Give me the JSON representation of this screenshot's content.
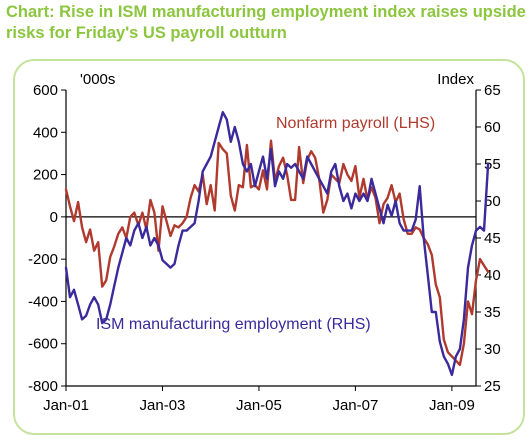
{
  "title": "Chart: Rise in ISM manufacturing employment index raises upside risks for Friday's US payroll outturn",
  "colors": {
    "title": "#8cc63f",
    "panel_border": "#c6e29f",
    "nonfarm": "#b03a2e",
    "ism": "#3a2a9c"
  },
  "chart_data": {
    "type": "line",
    "title": "Rise in ISM manufacturing employment index raises upside risks for Friday's US payroll outturn",
    "left_axis": {
      "unit_label": "'000s",
      "range": [
        -800,
        600
      ],
      "ticks": [
        "600",
        "400",
        "200",
        "0",
        "-200",
        "-400",
        "-600",
        "-800"
      ]
    },
    "right_axis": {
      "unit_label": "Index",
      "range": [
        25,
        65
      ],
      "ticks": [
        "65",
        "60",
        "55",
        "50",
        "45",
        "40",
        "35",
        "30",
        "25"
      ]
    },
    "x_axis": {
      "range": [
        "2001-01",
        "2009-07"
      ],
      "tick_labels": [
        {
          "label": "Jan-01",
          "date": "2001-01"
        },
        {
          "label": "Jan-03",
          "date": "2003-01"
        },
        {
          "label": "Jan-05",
          "date": "2005-01"
        },
        {
          "label": "Jan-07",
          "date": "2007-01"
        },
        {
          "label": "Jan-09",
          "date": "2009-01"
        }
      ]
    },
    "grid": false,
    "series": [
      {
        "name": "Nonfarm payroll (LHS)",
        "axis": "left",
        "color": "#b03a2e",
        "points": [
          [
            "2001-01",
            130
          ],
          [
            "2001-02",
            50
          ],
          [
            "2001-03",
            -20
          ],
          [
            "2001-04",
            70
          ],
          [
            "2001-05",
            -50
          ],
          [
            "2001-06",
            -120
          ],
          [
            "2001-07",
            -60
          ],
          [
            "2001-08",
            -160
          ],
          [
            "2001-09",
            -120
          ],
          [
            "2001-10",
            -330
          ],
          [
            "2001-11",
            -300
          ],
          [
            "2001-12",
            -190
          ],
          [
            "2002-01",
            -140
          ],
          [
            "2002-02",
            -80
          ],
          [
            "2002-03",
            -50
          ],
          [
            "2002-04",
            -100
          ],
          [
            "2002-05",
            0
          ],
          [
            "2002-06",
            20
          ],
          [
            "2002-07",
            -40
          ],
          [
            "2002-08",
            20
          ],
          [
            "2002-09",
            -60
          ],
          [
            "2002-10",
            80
          ],
          [
            "2002-11",
            20
          ],
          [
            "2002-12",
            -160
          ],
          [
            "2003-01",
            50
          ],
          [
            "2003-02",
            -20
          ],
          [
            "2003-03",
            -90
          ],
          [
            "2003-04",
            -40
          ],
          [
            "2003-05",
            -50
          ],
          [
            "2003-06",
            -30
          ],
          [
            "2003-07",
            0
          ],
          [
            "2003-08",
            90
          ],
          [
            "2003-09",
            150
          ],
          [
            "2003-10",
            120
          ],
          [
            "2003-11",
            200
          ],
          [
            "2003-12",
            60
          ],
          [
            "2004-01",
            150
          ],
          [
            "2004-02",
            30
          ],
          [
            "2004-03",
            350
          ],
          [
            "2004-04",
            320
          ],
          [
            "2004-05",
            300
          ],
          [
            "2004-06",
            100
          ],
          [
            "2004-07",
            30
          ],
          [
            "2004-08",
            150
          ],
          [
            "2004-09",
            140
          ],
          [
            "2004-10",
            340
          ],
          [
            "2004-11",
            140
          ],
          [
            "2004-12",
            150
          ],
          [
            "2005-01",
            130
          ],
          [
            "2005-02",
            220
          ],
          [
            "2005-03",
            130
          ],
          [
            "2005-04",
            360
          ],
          [
            "2005-05",
            170
          ],
          [
            "2005-06",
            240
          ],
          [
            "2005-07",
            280
          ],
          [
            "2005-08",
            200
          ],
          [
            "2005-09",
            80
          ],
          [
            "2005-10",
            80
          ],
          [
            "2005-11",
            330
          ],
          [
            "2005-12",
            160
          ],
          [
            "2006-01",
            270
          ],
          [
            "2006-02",
            310
          ],
          [
            "2006-03",
            280
          ],
          [
            "2006-04",
            180
          ],
          [
            "2006-05",
            20
          ],
          [
            "2006-06",
            80
          ],
          [
            "2006-07",
            200
          ],
          [
            "2006-08",
            180
          ],
          [
            "2006-09",
            160
          ],
          [
            "2006-10",
            250
          ],
          [
            "2006-11",
            200
          ],
          [
            "2006-12",
            170
          ],
          [
            "2007-01",
            240
          ],
          [
            "2007-02",
            90
          ],
          [
            "2007-03",
            180
          ],
          [
            "2007-04",
            80
          ],
          [
            "2007-05",
            140
          ],
          [
            "2007-06",
            90
          ],
          [
            "2007-07",
            -30
          ],
          [
            "2007-08",
            60
          ],
          [
            "2007-09",
            90
          ],
          [
            "2007-10",
            150
          ],
          [
            "2007-11",
            70
          ],
          [
            "2007-12",
            110
          ],
          [
            "2008-01",
            -10
          ],
          [
            "2008-02",
            -80
          ],
          [
            "2008-03",
            -80
          ],
          [
            "2008-04",
            -50
          ],
          [
            "2008-05",
            -60
          ],
          [
            "2008-06",
            -100
          ],
          [
            "2008-07",
            -130
          ],
          [
            "2008-08",
            -180
          ],
          [
            "2008-09",
            -320
          ],
          [
            "2008-10",
            -380
          ],
          [
            "2008-11",
            -580
          ],
          [
            "2008-12",
            -640
          ],
          [
            "2009-01",
            -660
          ],
          [
            "2009-02",
            -680
          ],
          [
            "2009-03",
            -700
          ],
          [
            "2009-04",
            -600
          ],
          [
            "2009-05",
            -400
          ],
          [
            "2009-06",
            -460
          ],
          [
            "2009-07",
            -300
          ],
          [
            "2009-08",
            -200
          ],
          [
            "2009-09",
            -230
          ],
          [
            "2009-10",
            -260
          ]
        ]
      },
      {
        "name": "ISM manufacturing employment (RHS)",
        "axis": "right",
        "color": "#3a2a9c",
        "points": [
          [
            "2001-01",
            41
          ],
          [
            "2001-02",
            37
          ],
          [
            "2001-03",
            38
          ],
          [
            "2001-04",
            36
          ],
          [
            "2001-05",
            34
          ],
          [
            "2001-06",
            34.5
          ],
          [
            "2001-07",
            36
          ],
          [
            "2001-08",
            37
          ],
          [
            "2001-09",
            36
          ],
          [
            "2001-10",
            33.5
          ],
          [
            "2001-11",
            34
          ],
          [
            "2001-12",
            36
          ],
          [
            "2002-01",
            38.5
          ],
          [
            "2002-02",
            41
          ],
          [
            "2002-03",
            43
          ],
          [
            "2002-04",
            45
          ],
          [
            "2002-05",
            44
          ],
          [
            "2002-06",
            46
          ],
          [
            "2002-07",
            47
          ],
          [
            "2002-08",
            45
          ],
          [
            "2002-09",
            46.5
          ],
          [
            "2002-10",
            44
          ],
          [
            "2002-11",
            45
          ],
          [
            "2002-12",
            44
          ],
          [
            "2003-01",
            42
          ],
          [
            "2003-02",
            41.5
          ],
          [
            "2003-03",
            41
          ],
          [
            "2003-04",
            41.5
          ],
          [
            "2003-05",
            44
          ],
          [
            "2003-06",
            46
          ],
          [
            "2003-07",
            46
          ],
          [
            "2003-08",
            46.5
          ],
          [
            "2003-09",
            47
          ],
          [
            "2003-10",
            50
          ],
          [
            "2003-11",
            54
          ],
          [
            "2003-12",
            55
          ],
          [
            "2004-01",
            56
          ],
          [
            "2004-02",
            58
          ],
          [
            "2004-03",
            60
          ],
          [
            "2004-04",
            62
          ],
          [
            "2004-05",
            61
          ],
          [
            "2004-06",
            58
          ],
          [
            "2004-07",
            60
          ],
          [
            "2004-08",
            58
          ],
          [
            "2004-09",
            55
          ],
          [
            "2004-10",
            54
          ],
          [
            "2004-11",
            55
          ],
          [
            "2004-12",
            52
          ],
          [
            "2005-01",
            54
          ],
          [
            "2005-02",
            56
          ],
          [
            "2005-03",
            53
          ],
          [
            "2005-04",
            57
          ],
          [
            "2005-05",
            52
          ],
          [
            "2005-06",
            54
          ],
          [
            "2005-07",
            53
          ],
          [
            "2005-08",
            55
          ],
          [
            "2005-09",
            54.5
          ],
          [
            "2005-10",
            55
          ],
          [
            "2005-11",
            54
          ],
          [
            "2005-12",
            53
          ],
          [
            "2006-01",
            56
          ],
          [
            "2006-02",
            55
          ],
          [
            "2006-03",
            54
          ],
          [
            "2006-04",
            53
          ],
          [
            "2006-05",
            52
          ],
          [
            "2006-06",
            51
          ],
          [
            "2006-07",
            54
          ],
          [
            "2006-08",
            55
          ],
          [
            "2006-09",
            52
          ],
          [
            "2006-10",
            50
          ],
          [
            "2006-11",
            51
          ],
          [
            "2006-12",
            49
          ],
          [
            "2007-01",
            51
          ],
          [
            "2007-02",
            50
          ],
          [
            "2007-03",
            51
          ],
          [
            "2007-04",
            50
          ],
          [
            "2007-05",
            53
          ],
          [
            "2007-06",
            51
          ],
          [
            "2007-07",
            49
          ],
          [
            "2007-08",
            47
          ],
          [
            "2007-09",
            49.5
          ],
          [
            "2007-10",
            48
          ],
          [
            "2007-11",
            50
          ],
          [
            "2007-12",
            47
          ],
          [
            "2008-01",
            46
          ],
          [
            "2008-02",
            46
          ],
          [
            "2008-03",
            46
          ],
          [
            "2008-04",
            47.5
          ],
          [
            "2008-05",
            52
          ],
          [
            "2008-06",
            45
          ],
          [
            "2008-07",
            40
          ],
          [
            "2008-08",
            35
          ],
          [
            "2008-09",
            35
          ],
          [
            "2008-10",
            31
          ],
          [
            "2008-11",
            29
          ],
          [
            "2008-12",
            28
          ],
          [
            "2009-01",
            26.5
          ],
          [
            "2009-02",
            29
          ],
          [
            "2009-03",
            30
          ],
          [
            "2009-04",
            34
          ],
          [
            "2009-05",
            41
          ],
          [
            "2009-06",
            44
          ],
          [
            "2009-07",
            46
          ],
          [
            "2009-08",
            46.5
          ],
          [
            "2009-09",
            46
          ],
          [
            "2009-10",
            55
          ]
        ]
      }
    ],
    "annotations": [
      {
        "text": "Nonfarm payroll (LHS)",
        "series": "Nonfarm payroll (LHS)"
      },
      {
        "text": "ISM manufacturing employment (RHS)",
        "series": "ISM manufacturing employment (RHS)"
      }
    ],
    "legend_placement": "inline annotations"
  }
}
